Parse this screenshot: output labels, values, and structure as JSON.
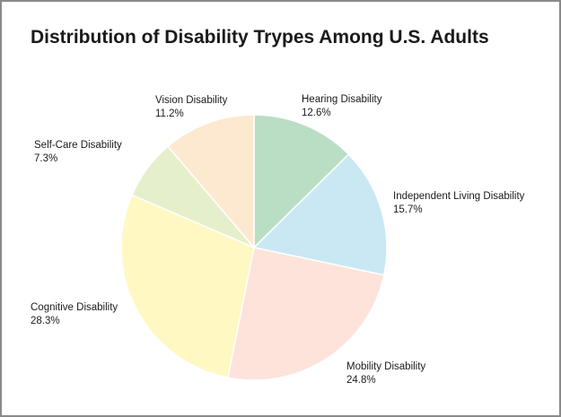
{
  "chart_data": {
    "type": "pie",
    "title": "Distribution of Disability Trypes Among U.S. Adults",
    "unit": "%",
    "slices": [
      {
        "label": "Hearing Disability",
        "value": 12.6,
        "value_label": "12.6%",
        "color": "#b9dec4"
      },
      {
        "label": "Independent Living Disability",
        "value": 15.7,
        "value_label": "15.7%",
        "color": "#c9e8f4"
      },
      {
        "label": "Mobility Disability",
        "value": 24.8,
        "value_label": "24.8%",
        "color": "#fde3da"
      },
      {
        "label": "Cognitive Disability",
        "value": 28.3,
        "value_label": "28.3%",
        "color": "#fff8c2"
      },
      {
        "label": "Self-Care Disability",
        "value": 7.3,
        "value_label": "7.3%",
        "color": "#e6efcc"
      },
      {
        "label": "Vision Disability",
        "value": 11.2,
        "value_label": "11.2%",
        "color": "#fde8d0"
      }
    ],
    "start_angle_deg": 0,
    "direction": "clockwise",
    "legend": "none"
  }
}
